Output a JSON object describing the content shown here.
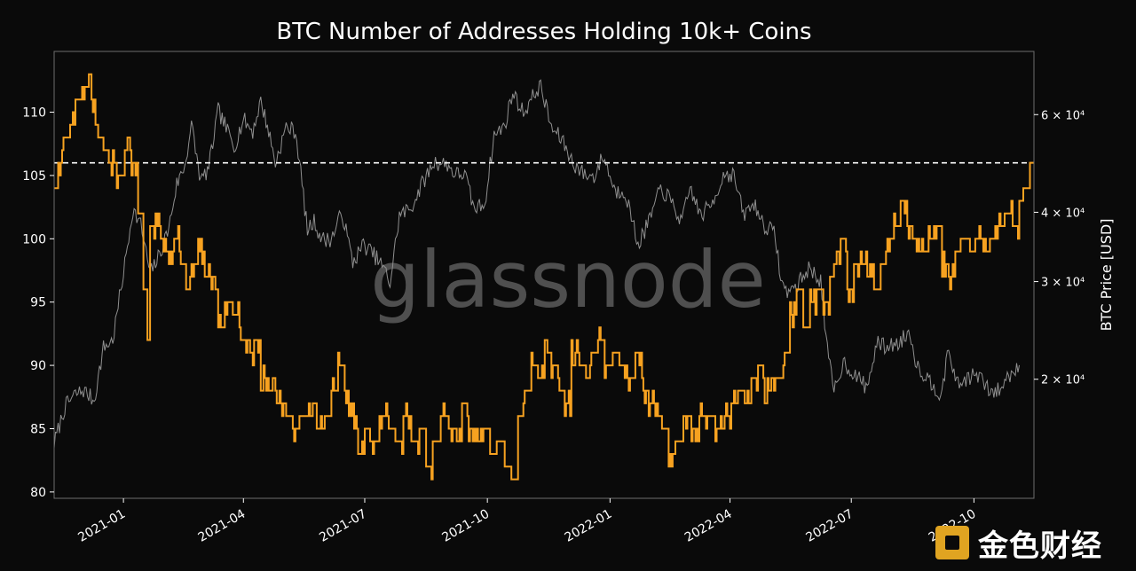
{
  "chart_data": {
    "type": "line",
    "title": "BTC Number of Addresses Holding 10k+ Coins",
    "ylabel_right": "BTC Price [USD]",
    "x_ticks": [
      "2021-01",
      "2021-04",
      "2021-07",
      "2021-10",
      "2022-01",
      "2022-04",
      "2022-07",
      "2022-10"
    ],
    "x_range": [
      "2020-11-10",
      "2022-11-15"
    ],
    "y_left": {
      "range": [
        79.5,
        114.8
      ],
      "ticks": [
        80,
        85,
        90,
        95,
        100,
        105,
        110
      ],
      "tick_labels": [
        "80",
        "85",
        "90",
        "95",
        "100",
        "105",
        "110"
      ]
    },
    "y_right": {
      "scale": "log",
      "range": [
        12200,
        78000
      ],
      "ticks": [
        20000,
        30000,
        40000,
        60000
      ],
      "tick_labels": [
        "2 × 10⁴",
        "3 × 10⁴",
        "4 × 10⁴",
        "6 × 10⁴"
      ]
    },
    "reference_line": {
      "value": 106,
      "style": "dashed",
      "color": "#ffffff"
    },
    "watermark": "glassnode",
    "grid": false,
    "series": [
      {
        "axis": "left",
        "color": "#f7a220",
        "step": true,
        "points": [
          [
            "2020-11-10",
            104
          ],
          [
            "2020-11-13",
            106
          ],
          [
            "2020-11-17",
            108
          ],
          [
            "2020-11-22",
            109
          ],
          [
            "2020-11-26",
            111
          ],
          [
            "2020-12-01",
            112
          ],
          [
            "2020-12-05",
            113
          ],
          [
            "2020-12-08",
            110
          ],
          [
            "2020-12-12",
            108
          ],
          [
            "2020-12-17",
            107
          ],
          [
            "2020-12-21",
            106
          ],
          [
            "2020-12-27",
            105
          ],
          [
            "2021-01-02",
            107
          ],
          [
            "2021-01-07",
            106
          ],
          [
            "2021-01-12",
            102
          ],
          [
            "2021-01-16",
            96
          ],
          [
            "2021-01-19",
            92
          ],
          [
            "2021-01-21",
            100
          ],
          [
            "2021-01-25",
            101
          ],
          [
            "2021-01-29",
            100
          ],
          [
            "2021-02-03",
            99
          ],
          [
            "2021-02-08",
            100
          ],
          [
            "2021-02-13",
            98
          ],
          [
            "2021-02-17",
            96
          ],
          [
            "2021-02-21",
            98
          ],
          [
            "2021-02-26",
            99
          ],
          [
            "2021-03-03",
            97
          ],
          [
            "2021-03-08",
            96
          ],
          [
            "2021-03-13",
            93
          ],
          [
            "2021-03-18",
            95
          ],
          [
            "2021-03-24",
            94
          ],
          [
            "2021-03-29",
            92
          ],
          [
            "2021-04-03",
            91
          ],
          [
            "2021-04-09",
            92
          ],
          [
            "2021-04-14",
            89
          ],
          [
            "2021-04-20",
            88
          ],
          [
            "2021-04-26",
            87
          ],
          [
            "2021-05-02",
            86
          ],
          [
            "2021-05-08",
            85
          ],
          [
            "2021-05-14",
            86
          ],
          [
            "2021-05-20",
            87
          ],
          [
            "2021-05-26",
            85
          ],
          [
            "2021-06-01",
            86
          ],
          [
            "2021-06-06",
            88
          ],
          [
            "2021-06-11",
            90
          ],
          [
            "2021-06-16",
            87
          ],
          [
            "2021-06-21",
            86
          ],
          [
            "2021-06-26",
            83
          ],
          [
            "2021-07-01",
            85
          ],
          [
            "2021-07-06",
            84
          ],
          [
            "2021-07-12",
            86
          ],
          [
            "2021-07-18",
            85
          ],
          [
            "2021-07-24",
            84
          ],
          [
            "2021-07-30",
            86
          ],
          [
            "2021-08-05",
            84
          ],
          [
            "2021-08-11",
            85
          ],
          [
            "2021-08-16",
            82
          ],
          [
            "2021-08-21",
            84
          ],
          [
            "2021-08-27",
            86
          ],
          [
            "2021-09-02",
            85
          ],
          [
            "2021-09-07",
            84
          ],
          [
            "2021-09-12",
            87
          ],
          [
            "2021-09-17",
            85
          ],
          [
            "2021-09-22",
            84
          ],
          [
            "2021-09-28",
            85
          ],
          [
            "2021-10-03",
            83
          ],
          [
            "2021-10-09",
            84
          ],
          [
            "2021-10-14",
            82
          ],
          [
            "2021-10-19",
            81
          ],
          [
            "2021-10-24",
            86
          ],
          [
            "2021-10-29",
            88
          ],
          [
            "2021-11-03",
            90
          ],
          [
            "2021-11-08",
            89
          ],
          [
            "2021-11-13",
            91
          ],
          [
            "2021-11-18",
            90
          ],
          [
            "2021-11-23",
            88
          ],
          [
            "2021-11-28",
            87
          ],
          [
            "2021-12-03",
            91
          ],
          [
            "2021-12-08",
            90
          ],
          [
            "2021-12-13",
            89
          ],
          [
            "2021-12-18",
            91
          ],
          [
            "2021-12-23",
            92
          ],
          [
            "2021-12-28",
            90
          ],
          [
            "2022-01-03",
            91
          ],
          [
            "2022-01-09",
            90
          ],
          [
            "2022-01-14",
            89
          ],
          [
            "2022-01-20",
            91
          ],
          [
            "2022-01-25",
            88
          ],
          [
            "2022-01-30",
            87
          ],
          [
            "2022-02-04",
            86
          ],
          [
            "2022-02-09",
            85
          ],
          [
            "2022-02-14",
            83
          ],
          [
            "2022-02-19",
            84
          ],
          [
            "2022-02-25",
            86
          ],
          [
            "2022-03-03",
            85
          ],
          [
            "2022-03-09",
            86
          ],
          [
            "2022-03-15",
            86
          ],
          [
            "2022-03-21",
            85
          ],
          [
            "2022-03-27",
            86
          ],
          [
            "2022-04-02",
            87
          ],
          [
            "2022-04-07",
            88
          ],
          [
            "2022-04-12",
            87
          ],
          [
            "2022-04-17",
            89
          ],
          [
            "2022-04-22",
            90
          ],
          [
            "2022-04-27",
            88
          ],
          [
            "2022-05-02",
            89
          ],
          [
            "2022-05-07",
            89
          ],
          [
            "2022-05-12",
            91
          ],
          [
            "2022-05-16",
            94
          ],
          [
            "2022-05-21",
            96
          ],
          [
            "2022-05-26",
            93
          ],
          [
            "2022-05-31",
            95
          ],
          [
            "2022-06-05",
            96
          ],
          [
            "2022-06-10",
            95
          ],
          [
            "2022-06-15",
            97
          ],
          [
            "2022-06-18",
            99
          ],
          [
            "2022-06-23",
            100
          ],
          [
            "2022-06-28",
            96
          ],
          [
            "2022-07-03",
            98
          ],
          [
            "2022-07-08",
            99
          ],
          [
            "2022-07-13",
            97
          ],
          [
            "2022-07-18",
            96
          ],
          [
            "2022-07-23",
            98
          ],
          [
            "2022-07-28",
            100
          ],
          [
            "2022-08-02",
            101
          ],
          [
            "2022-08-07",
            103
          ],
          [
            "2022-08-12",
            101
          ],
          [
            "2022-08-17",
            100
          ],
          [
            "2022-08-22",
            99
          ],
          [
            "2022-08-28",
            100
          ],
          [
            "2022-09-02",
            101
          ],
          [
            "2022-09-07",
            98
          ],
          [
            "2022-09-12",
            97
          ],
          [
            "2022-09-17",
            99
          ],
          [
            "2022-09-22",
            100
          ],
          [
            "2022-09-27",
            99
          ],
          [
            "2022-10-02",
            100
          ],
          [
            "2022-10-08",
            99
          ],
          [
            "2022-10-13",
            100
          ],
          [
            "2022-10-19",
            101
          ],
          [
            "2022-10-24",
            102
          ],
          [
            "2022-10-30",
            101
          ],
          [
            "2022-11-04",
            103
          ],
          [
            "2022-11-08",
            104
          ],
          [
            "2022-11-12",
            106
          ],
          [
            "2022-11-15",
            106
          ]
        ]
      },
      {
        "axis": "right",
        "color": "#8f8f8f",
        "points": [
          [
            "2020-11-10",
            15300
          ],
          [
            "2020-11-18",
            17800
          ],
          [
            "2020-11-25",
            18700
          ],
          [
            "2020-12-02",
            19100
          ],
          [
            "2020-12-10",
            18300
          ],
          [
            "2020-12-17",
            22800
          ],
          [
            "2020-12-24",
            23500
          ],
          [
            "2021-01-02",
            32200
          ],
          [
            "2021-01-08",
            40500
          ],
          [
            "2021-01-14",
            38000
          ],
          [
            "2021-01-21",
            31000
          ],
          [
            "2021-01-28",
            33500
          ],
          [
            "2021-02-04",
            37500
          ],
          [
            "2021-02-10",
            45000
          ],
          [
            "2021-02-16",
            48500
          ],
          [
            "2021-02-21",
            57500
          ],
          [
            "2021-02-28",
            45500
          ],
          [
            "2021-03-06",
            48000
          ],
          [
            "2021-03-13",
            61000
          ],
          [
            "2021-03-18",
            57500
          ],
          [
            "2021-03-25",
            52500
          ],
          [
            "2021-04-01",
            58800
          ],
          [
            "2021-04-08",
            56000
          ],
          [
            "2021-04-14",
            63500
          ],
          [
            "2021-04-20",
            56000
          ],
          [
            "2021-04-25",
            49000
          ],
          [
            "2021-05-03",
            57000
          ],
          [
            "2021-05-10",
            56000
          ],
          [
            "2021-05-13",
            49500
          ],
          [
            "2021-05-19",
            37000
          ],
          [
            "2021-05-24",
            38500
          ],
          [
            "2021-05-30",
            35700
          ],
          [
            "2021-06-06",
            35800
          ],
          [
            "2021-06-14",
            40000
          ],
          [
            "2021-06-22",
            32500
          ],
          [
            "2021-06-30",
            35000
          ],
          [
            "2021-07-08",
            33500
          ],
          [
            "2021-07-15",
            31800
          ],
          [
            "2021-07-20",
            29800
          ],
          [
            "2021-07-27",
            39500
          ],
          [
            "2021-08-05",
            40800
          ],
          [
            "2021-08-12",
            44500
          ],
          [
            "2021-08-22",
            49300
          ],
          [
            "2021-09-01",
            48800
          ],
          [
            "2021-09-07",
            46800
          ],
          [
            "2021-09-14",
            47000
          ],
          [
            "2021-09-21",
            40500
          ],
          [
            "2021-09-29",
            41500
          ],
          [
            "2021-10-06",
            55000
          ],
          [
            "2021-10-14",
            57300
          ],
          [
            "2021-10-20",
            65800
          ],
          [
            "2021-10-28",
            60500
          ],
          [
            "2021-11-08",
            66900
          ],
          [
            "2021-11-10",
            67500
          ],
          [
            "2021-11-18",
            56800
          ],
          [
            "2021-11-26",
            54000
          ],
          [
            "2021-12-04",
            49200
          ],
          [
            "2021-12-13",
            46700
          ],
          [
            "2021-12-20",
            46400
          ],
          [
            "2021-12-27",
            50600
          ],
          [
            "2022-01-05",
            43500
          ],
          [
            "2022-01-12",
            43900
          ],
          [
            "2022-01-22",
            35000
          ],
          [
            "2022-01-29",
            37900
          ],
          [
            "2022-02-08",
            44100
          ],
          [
            "2022-02-14",
            42500
          ],
          [
            "2022-02-24",
            38300
          ],
          [
            "2022-03-02",
            44400
          ],
          [
            "2022-03-10",
            39400
          ],
          [
            "2022-03-18",
            41300
          ],
          [
            "2022-03-28",
            47100
          ],
          [
            "2022-04-04",
            46600
          ],
          [
            "2022-04-11",
            39500
          ],
          [
            "2022-04-19",
            41500
          ],
          [
            "2022-04-26",
            38100
          ],
          [
            "2022-05-05",
            36500
          ],
          [
            "2022-05-09",
            30300
          ],
          [
            "2022-05-12",
            28900
          ],
          [
            "2022-05-20",
            29200
          ],
          [
            "2022-05-30",
            31700
          ],
          [
            "2022-06-08",
            30200
          ],
          [
            "2022-06-13",
            22500
          ],
          [
            "2022-06-18",
            19000
          ],
          [
            "2022-06-25",
            21500
          ],
          [
            "2022-07-05",
            20200
          ],
          [
            "2022-07-13",
            19300
          ],
          [
            "2022-07-20",
            23200
          ],
          [
            "2022-07-27",
            22900
          ],
          [
            "2022-08-05",
            23200
          ],
          [
            "2022-08-14",
            24400
          ],
          [
            "2022-08-19",
            21200
          ],
          [
            "2022-08-27",
            20100
          ],
          [
            "2022-09-06",
            18800
          ],
          [
            "2022-09-12",
            22400
          ],
          [
            "2022-09-19",
            19500
          ],
          [
            "2022-09-27",
            20200
          ],
          [
            "2022-10-05",
            20300
          ],
          [
            "2022-10-13",
            18900
          ],
          [
            "2022-10-20",
            19100
          ],
          [
            "2022-10-27",
            20300
          ],
          [
            "2022-11-04",
            21200
          ]
        ]
      }
    ]
  },
  "brand": {
    "text": "金色财经"
  }
}
